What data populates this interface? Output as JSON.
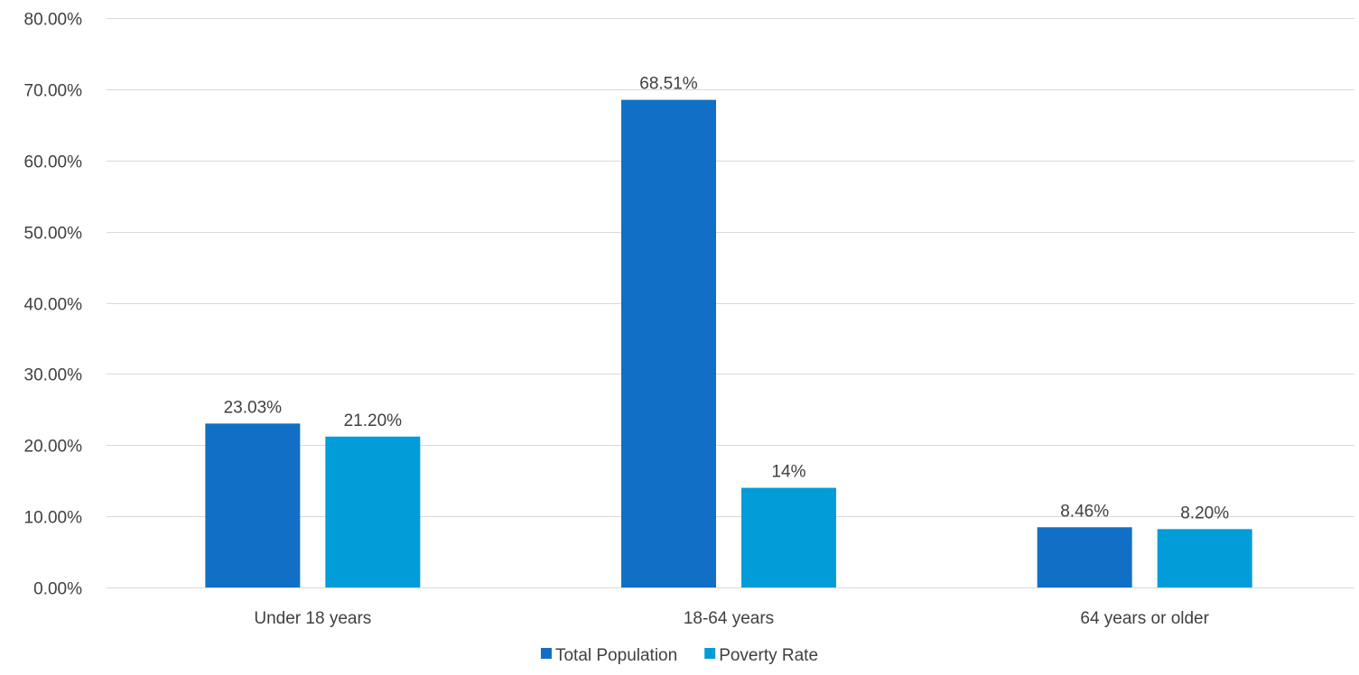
{
  "chart_data": {
    "type": "bar",
    "title": "",
    "xlabel": "",
    "ylabel": "",
    "categories": [
      "Under 18 years",
      "18-64 years",
      "64 years or older"
    ],
    "series": [
      {
        "name": "Total Population",
        "color": "#1170c6",
        "values": [
          23.03,
          68.51,
          8.46
        ],
        "labels": [
          "23.03%",
          "68.51%",
          "8.46%"
        ]
      },
      {
        "name": "Poverty Rate",
        "color": "#029cd9",
        "values": [
          21.2,
          14,
          8.2
        ],
        "labels": [
          "21.20%",
          "14%",
          "8.20%"
        ]
      }
    ],
    "ylim": [
      0,
      80
    ],
    "yticks": [
      0,
      10,
      20,
      30,
      40,
      50,
      60,
      70,
      80
    ],
    "ytick_labels": [
      "0.00%",
      "10.00%",
      "20.00%",
      "30.00%",
      "40.00%",
      "50.00%",
      "60.00%",
      "70.00%",
      "80.00%"
    ],
    "grid": true,
    "legend_position": "bottom"
  }
}
